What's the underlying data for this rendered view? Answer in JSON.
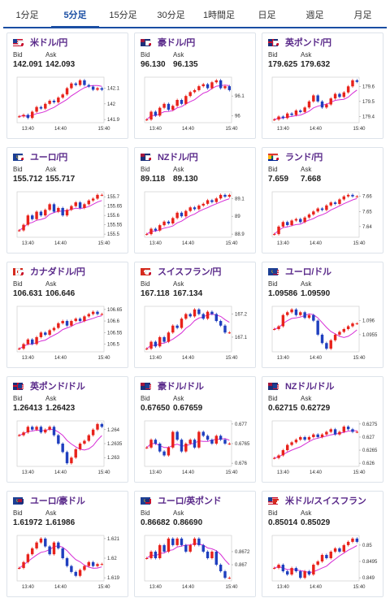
{
  "tabs": [
    "1分足",
    "5分足",
    "15分足",
    "30分足",
    "1時間足",
    "日足",
    "週足",
    "月足"
  ],
  "active_tab": 1,
  "labels": {
    "bid": "Bid",
    "ask": "Ask"
  },
  "colors": {
    "up": "#e8221b",
    "down": "#1f3fbf",
    "ma": "#d62dd6",
    "ma2": "#9fd0f0",
    "accent": "#1a4ea3",
    "pair": "#5a2a8a"
  },
  "time_labels": [
    "13:40",
    "14:40",
    "15:40"
  ],
  "cards": [
    {
      "pair": "米ドル/円",
      "bid": "142.091",
      "ask": "142.093",
      "flag1": "us",
      "flag2": "jp",
      "ticks": [
        "142.1",
        "142",
        "141.9"
      ],
      "tick_values": [
        142.1,
        142.0,
        141.9
      ],
      "series": [
        141.92,
        141.93,
        141.91,
        141.95,
        141.98,
        141.97,
        142.0,
        142.02,
        142.01,
        142.04,
        142.06,
        142.1,
        142.13,
        142.12,
        142.15,
        142.12,
        142.11,
        142.09,
        142.1,
        142.09
      ]
    },
    {
      "pair": "豪ドル/円",
      "bid": "96.130",
      "ask": "96.135",
      "flag1": "au",
      "flag2": "jp",
      "ticks": [
        "96.1",
        "96"
      ],
      "tick_values": [
        96.1,
        96.0
      ],
      "series": [
        95.98,
        96.02,
        96.0,
        96.04,
        96.06,
        96.03,
        96.05,
        96.08,
        96.06,
        96.1,
        96.12,
        96.13,
        96.15,
        96.16,
        96.14,
        96.17,
        96.18,
        96.14,
        96.15,
        96.13
      ]
    },
    {
      "pair": "英ポンド/円",
      "bid": "179.625",
      "ask": "179.632",
      "flag1": "gb",
      "flag2": "jp",
      "ticks": [
        "179.6",
        "179.5",
        "179.4"
      ],
      "tick_values": [
        179.6,
        179.5,
        179.4
      ],
      "series": [
        179.38,
        179.4,
        179.39,
        179.42,
        179.41,
        179.44,
        179.43,
        179.46,
        179.5,
        179.54,
        179.5,
        179.46,
        179.48,
        179.52,
        179.55,
        179.53,
        179.56,
        179.6,
        179.64,
        179.63
      ]
    },
    {
      "pair": "ユーロ/円",
      "bid": "155.712",
      "ask": "155.717",
      "flag1": "eu",
      "flag2": "jp",
      "ticks": [
        "155.7",
        "155.65",
        "155.6",
        "155.55",
        "155.5"
      ],
      "tick_values": [
        155.7,
        155.65,
        155.6,
        155.55,
        155.5
      ],
      "series": [
        155.52,
        155.55,
        155.6,
        155.58,
        155.62,
        155.6,
        155.63,
        155.66,
        155.62,
        155.64,
        155.6,
        155.63,
        155.65,
        155.67,
        155.64,
        155.66,
        155.68,
        155.69,
        155.71,
        155.71
      ]
    },
    {
      "pair": "NZドル/円",
      "bid": "89.118",
      "ask": "89.130",
      "flag1": "nz",
      "flag2": "jp",
      "ticks": [
        "89.1",
        "89",
        "88.9"
      ],
      "tick_values": [
        89.1,
        89.0,
        88.9
      ],
      "series": [
        88.9,
        88.93,
        88.92,
        88.95,
        88.97,
        88.96,
        88.99,
        89.02,
        89.0,
        89.03,
        89.05,
        89.04,
        89.06,
        89.07,
        89.09,
        89.08,
        89.1,
        89.12,
        89.11,
        89.12
      ]
    },
    {
      "pair": "ランド/円",
      "bid": "7.659",
      "ask": "7.668",
      "flag1": "za",
      "flag2": "jp",
      "ticks": [
        "7.66",
        "7.65",
        "7.64"
      ],
      "tick_values": [
        7.66,
        7.65,
        7.64
      ],
      "series": [
        7.635,
        7.64,
        7.643,
        7.641,
        7.644,
        7.645,
        7.643,
        7.646,
        7.648,
        7.65,
        7.652,
        7.651,
        7.654,
        7.656,
        7.655,
        7.658,
        7.66,
        7.661,
        7.66,
        7.66
      ]
    },
    {
      "pair": "カナダドル/円",
      "bid": "106.631",
      "ask": "106.646",
      "flag1": "ca",
      "flag2": "jp",
      "ticks": [
        "106.65",
        "106.6",
        "106.55",
        "106.5"
      ],
      "tick_values": [
        106.65,
        106.6,
        106.55,
        106.5
      ],
      "series": [
        106.48,
        106.5,
        106.52,
        106.5,
        106.53,
        106.55,
        106.54,
        106.56,
        106.57,
        106.59,
        106.6,
        106.58,
        106.6,
        106.61,
        106.6,
        106.62,
        106.63,
        106.64,
        106.63,
        106.63
      ]
    },
    {
      "pair": "スイスフラン/円",
      "bid": "167.118",
      "ask": "167.134",
      "flag1": "ch",
      "flag2": "jp",
      "ticks": [
        "167.2",
        "167.1"
      ],
      "tick_values": [
        167.2,
        167.1
      ],
      "series": [
        167.05,
        167.08,
        167.06,
        167.1,
        167.08,
        167.12,
        167.15,
        167.14,
        167.18,
        167.2,
        167.19,
        167.22,
        167.2,
        167.18,
        167.21,
        167.2,
        167.17,
        167.15,
        167.12,
        167.12
      ]
    },
    {
      "pair": "ユーロ/ドル",
      "bid": "1.09586",
      "ask": "1.09590",
      "flag1": "eu",
      "flag2": "us",
      "ticks": [
        "1.096",
        "1.0955"
      ],
      "tick_values": [
        1.096,
        1.0955
      ],
      "series": [
        1.0957,
        1.0958,
        1.0962,
        1.0963,
        1.0964,
        1.0962,
        1.0963,
        1.0961,
        1.0962,
        1.096,
        1.0955,
        1.0952,
        1.095,
        1.0953,
        1.0955,
        1.0956,
        1.0957,
        1.0958,
        1.0959,
        1.0959
      ]
    },
    {
      "pair": "英ポンド/ドル",
      "bid": "1.26413",
      "ask": "1.26423",
      "flag1": "gb",
      "flag2": "us",
      "ticks": [
        "1.264",
        "1.2635",
        "1.263"
      ],
      "tick_values": [
        1.264,
        1.2635,
        1.263
      ],
      "series": [
        1.2638,
        1.2639,
        1.2641,
        1.264,
        1.2641,
        1.2639,
        1.264,
        1.2641,
        1.2638,
        1.2635,
        1.2632,
        1.2628,
        1.263,
        1.2633,
        1.2635,
        1.2636,
        1.2638,
        1.264,
        1.2642,
        1.2641
      ]
    },
    {
      "pair": "豪ドル/ドル",
      "bid": "0.67650",
      "ask": "0.67659",
      "flag1": "au",
      "flag2": "us",
      "ticks": [
        "0.677",
        "0.6765",
        "0.676"
      ],
      "tick_values": [
        0.677,
        0.6765,
        0.676
      ],
      "series": [
        0.6764,
        0.6766,
        0.6765,
        0.6763,
        0.6762,
        0.6764,
        0.6768,
        0.6766,
        0.6763,
        0.6765,
        0.6766,
        0.6764,
        0.6768,
        0.6767,
        0.6766,
        0.6765,
        0.6767,
        0.6766,
        0.6765,
        0.6765
      ]
    },
    {
      "pair": "NZドル/ドル",
      "bid": "0.62715",
      "ask": "0.62729",
      "flag1": "nz",
      "flag2": "us",
      "ticks": [
        "0.6275",
        "0.627",
        "0.6265",
        "0.626"
      ],
      "tick_values": [
        0.6275,
        0.627,
        0.6265,
        0.626
      ],
      "series": [
        0.6262,
        0.6263,
        0.6265,
        0.6267,
        0.6268,
        0.6269,
        0.627,
        0.6269,
        0.627,
        0.6271,
        0.627,
        0.6271,
        0.6272,
        0.6273,
        0.6271,
        0.6272,
        0.6274,
        0.6273,
        0.6272,
        0.6272
      ]
    },
    {
      "pair": "ユーロ/豪ドル",
      "bid": "1.61972",
      "ask": "1.61986",
      "flag1": "eu",
      "flag2": "au",
      "ticks": [
        "1.621",
        "1.62",
        "1.619"
      ],
      "tick_values": [
        1.621,
        1.62,
        1.619
      ],
      "series": [
        1.6195,
        1.6198,
        1.6202,
        1.6205,
        1.6208,
        1.621,
        1.6206,
        1.6202,
        1.6208,
        1.6205,
        1.62,
        1.6196,
        1.6193,
        1.6191,
        1.6194,
        1.6196,
        1.6198,
        1.6196,
        1.6197,
        1.6197
      ]
    },
    {
      "pair": "ユーロ/英ポンド",
      "bid": "0.86682",
      "ask": "0.86690",
      "flag1": "eu",
      "flag2": "gb",
      "ticks": [
        "0.8672",
        "0.867"
      ],
      "tick_values": [
        0.8672,
        0.867
      ],
      "series": [
        0.8671,
        0.8672,
        0.8671,
        0.8673,
        0.8672,
        0.8674,
        0.8673,
        0.8674,
        0.8673,
        0.8672,
        0.8673,
        0.8674,
        0.8673,
        0.8672,
        0.8671,
        0.8672,
        0.867,
        0.8669,
        0.8668,
        0.8668
      ]
    },
    {
      "pair": "米ドル/スイスフラン",
      "bid": "0.85014",
      "ask": "0.85029",
      "flag1": "us",
      "flag2": "ch",
      "ticks": [
        "0.85",
        "0.8495",
        "0.849"
      ],
      "tick_values": [
        0.85,
        0.8495,
        0.849
      ],
      "series": [
        0.8493,
        0.8494,
        0.8492,
        0.8491,
        0.8493,
        0.8492,
        0.849,
        0.8492,
        0.8491,
        0.8494,
        0.8495,
        0.8497,
        0.8496,
        0.8498,
        0.8499,
        0.8498,
        0.85,
        0.8501,
        0.8502,
        0.8501
      ]
    }
  ]
}
